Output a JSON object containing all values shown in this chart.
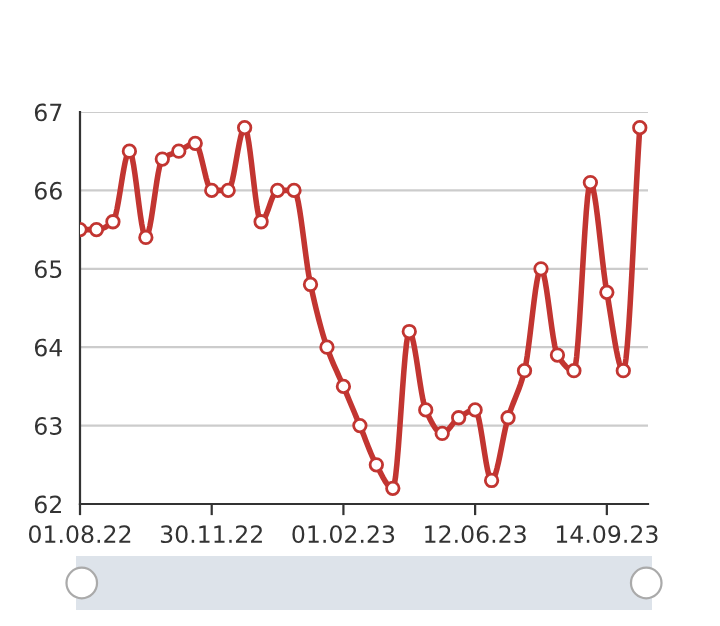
{
  "chart_data": {
    "type": "line",
    "categories": [
      "01.08.22",
      null,
      null,
      null,
      null,
      null,
      null,
      null,
      "30.11.22",
      null,
      null,
      null,
      null,
      null,
      null,
      null,
      "01.02.23",
      null,
      null,
      null,
      null,
      null,
      null,
      null,
      "12.06.23",
      null,
      null,
      null,
      null,
      null,
      null,
      null,
      "14.09.23",
      null,
      null
    ],
    "series": [
      {
        "color": "#c23531",
        "values": [
          65.5,
          65.5,
          65.6,
          66.5,
          65.4,
          66.4,
          66.5,
          66.6,
          66.0,
          66.0,
          66.8,
          65.6,
          66.0,
          66.0,
          64.8,
          64.0,
          63.5,
          63.0,
          62.5,
          62.2,
          64.2,
          63.2,
          62.9,
          63.1,
          63.2,
          62.3,
          63.1,
          63.7,
          65.0,
          63.9,
          63.7,
          66.1,
          64.7,
          63.7,
          66.8
        ]
      }
    ],
    "ylim": [
      62,
      67
    ],
    "yticks": [
      62,
      63,
      64,
      65,
      66,
      67
    ],
    "grid": "y",
    "marker": "circle",
    "line_style": "solid",
    "legend": false
  }
}
